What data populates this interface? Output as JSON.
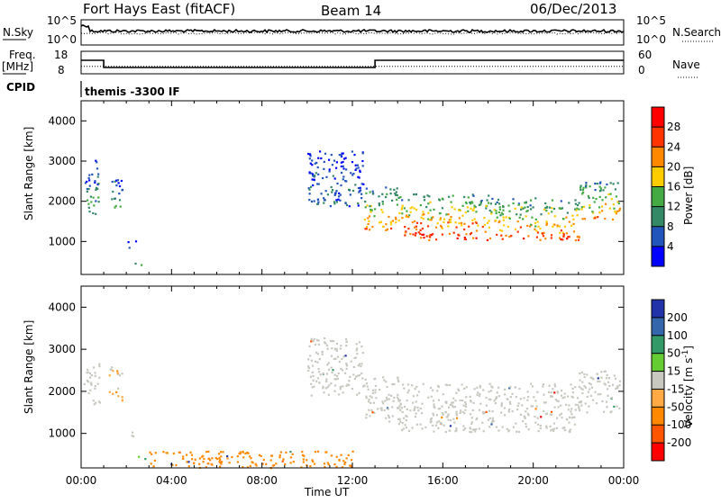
{
  "header": {
    "station": "Fort Hays East (fitACF)",
    "beam": "Beam 14",
    "date": "06/Dec/2013"
  },
  "noise_panel": {
    "left_label": "N.Sky",
    "right_label": "N.Search",
    "left_ticks": [
      "10^5",
      "10^0"
    ],
    "right_ticks": [
      "10^5",
      "10^0"
    ]
  },
  "freq_panel": {
    "left_label": "Freq.",
    "left_unit": "[MHz]",
    "right_label": "Nave",
    "left_ticks": [
      "18",
      "8"
    ],
    "right_ticks": [
      "60",
      "0"
    ],
    "freq_series": [
      {
        "t": 0.0,
        "v": 14
      },
      {
        "t": 1.0,
        "v": 14
      },
      {
        "t": 1.0,
        "v": 10.8
      },
      {
        "t": 13.0,
        "v": 10.8
      },
      {
        "t": 13.0,
        "v": 14
      },
      {
        "t": 24.0,
        "v": 14
      }
    ],
    "nave_series": [
      {
        "t": 0.0,
        "v": 20
      },
      {
        "t": 24.0,
        "v": 20
      }
    ]
  },
  "cpid_panel": {
    "label": "CPID",
    "program": "themis -3300 IF"
  },
  "x_axis": {
    "title": "Time UT",
    "tick_labels": [
      "00:00",
      "04:00",
      "08:00",
      "12:00",
      "16:00",
      "20:00",
      "00:00"
    ],
    "range_hours": [
      0,
      24
    ]
  },
  "colors": {
    "power": [
      "#0000ff",
      "#2255bb",
      "#338866",
      "#44aa44",
      "#ffcc00",
      "#ff8800",
      "#ff3300",
      "#ff0000"
    ],
    "velocity": [
      "#2233aa",
      "#3366aa",
      "#339966",
      "#66cc33",
      "#c8c8c0",
      "#ffaa44",
      "#ff8800",
      "#ff5500",
      "#ff0000"
    ]
  },
  "chart_data": [
    {
      "type": "heatmap",
      "panel": "power",
      "ylabel": "Slant Range [km]",
      "ylim": [
        180,
        4500
      ],
      "yticks": [
        1000,
        2000,
        3000,
        4000
      ],
      "xlim": [
        0,
        24
      ],
      "colorbar": {
        "title": "Power [dB]",
        "ticks": [
          "4",
          "8",
          "12",
          "16",
          "20",
          "24",
          "28"
        ],
        "range": [
          0,
          30
        ]
      },
      "scatter_bands": [
        {
          "t0": 0.1,
          "t1": 0.8,
          "r0": 1700,
          "r1": 2700,
          "level": 10
        },
        {
          "t0": 0.8,
          "t1": 0.6,
          "r0": 2200,
          "r1": 3100,
          "level": 6
        },
        {
          "t0": 1.2,
          "t1": 1.8,
          "r0": 1800,
          "r1": 2600,
          "level": 10
        },
        {
          "t0": 2.0,
          "t1": 2.4,
          "r0": 850,
          "r1": 1050,
          "level": 8
        },
        {
          "t0": 2.2,
          "t1": 2.8,
          "r0": 400,
          "r1": 500,
          "level": 12
        },
        {
          "t0": 10.0,
          "t1": 12.5,
          "r0": 1900,
          "r1": 3300,
          "level": 6
        },
        {
          "t0": 12.5,
          "t1": 14.0,
          "r0": 1300,
          "r1": 2400,
          "level": 18
        },
        {
          "t0": 14.0,
          "t1": 18.0,
          "r0": 1050,
          "r1": 2200,
          "level": 22
        },
        {
          "t0": 18.0,
          "t1": 22.0,
          "r0": 1050,
          "r1": 2100,
          "level": 20
        },
        {
          "t0": 22.0,
          "t1": 23.8,
          "r0": 1500,
          "r1": 2500,
          "level": 18
        }
      ]
    },
    {
      "type": "heatmap",
      "panel": "velocity",
      "ylabel": "Slant Range [km]",
      "ylim": [
        180,
        4500
      ],
      "yticks": [
        1000,
        2000,
        3000,
        4000
      ],
      "xlim": [
        0,
        24
      ],
      "colorbar": {
        "title": "Velocity [m s^-1]",
        "ticks": [
          "200",
          "100",
          "50",
          "15",
          "-15",
          "-50",
          "-100",
          "-200"
        ],
        "range": [
          -250,
          250
        ]
      },
      "scatter_bands": [
        {
          "t0": 0.1,
          "t1": 0.8,
          "r0": 1700,
          "r1": 2700,
          "vel": 0
        },
        {
          "t0": 1.2,
          "t1": 1.8,
          "r0": 1800,
          "r1": 2600,
          "vel": -20
        },
        {
          "t0": 2.0,
          "t1": 2.4,
          "r0": 850,
          "r1": 1050,
          "vel": 0
        },
        {
          "t0": 2.2,
          "t1": 2.8,
          "r0": 400,
          "r1": 500,
          "vel": 30
        },
        {
          "t0": 10.0,
          "t1": 12.5,
          "r0": 1900,
          "r1": 3300,
          "vel": 0
        },
        {
          "t0": 12.5,
          "t1": 14.0,
          "r0": 1300,
          "r1": 2400,
          "vel": 0
        },
        {
          "t0": 14.0,
          "t1": 22.0,
          "r0": 1050,
          "r1": 2200,
          "vel": 0
        },
        {
          "t0": 22.0,
          "t1": 23.8,
          "r0": 1500,
          "r1": 2500,
          "vel": 0
        },
        {
          "t0": 3.0,
          "t1": 12.0,
          "r0": 200,
          "r1": 600,
          "vel": -60
        }
      ]
    }
  ]
}
